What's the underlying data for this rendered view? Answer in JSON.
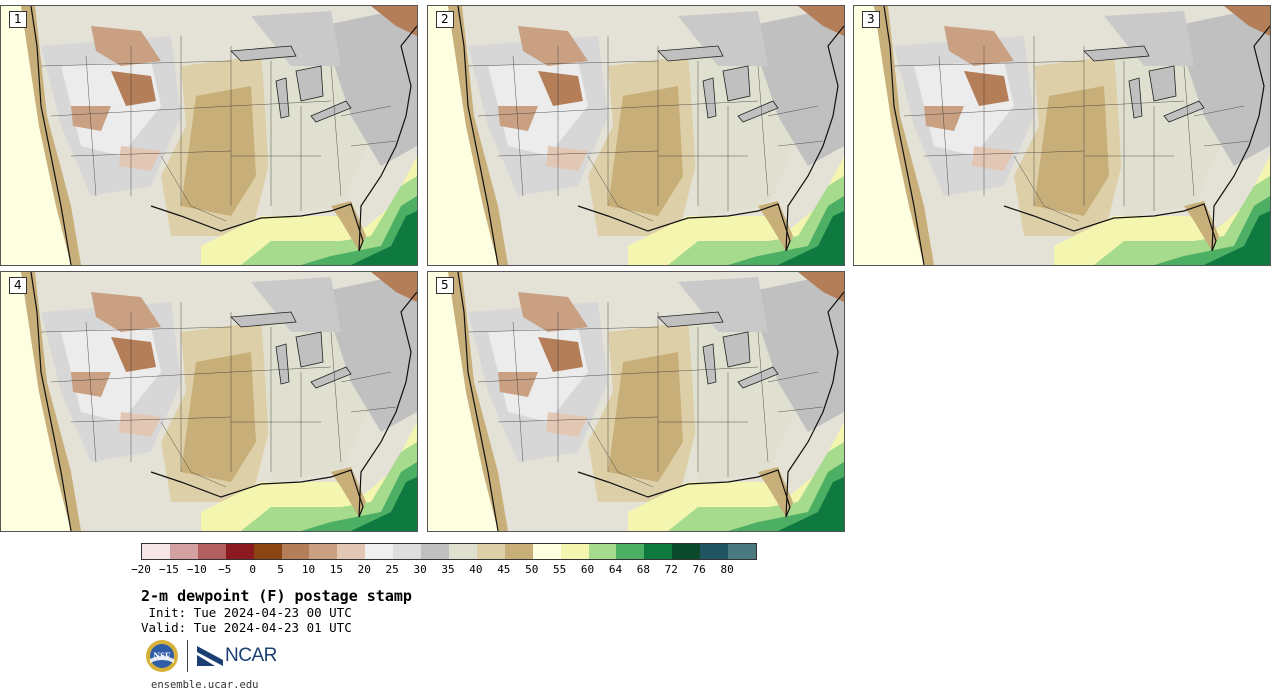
{
  "panels": [
    {
      "label": "1"
    },
    {
      "label": "2"
    },
    {
      "label": "3"
    },
    {
      "label": "4"
    },
    {
      "label": "5"
    }
  ],
  "colorbar": {
    "colors": [
      "#f6e6e8",
      "#d4a1a2",
      "#b35e60",
      "#8a1a20",
      "#8a4512",
      "#b47e58",
      "#c9a082",
      "#e2c7b5",
      "#f0f0f0",
      "#dedede",
      "#c0c0c0",
      "#e0e0d0",
      "#ddd0a8",
      "#c8ae78",
      "#fefee0",
      "#f4f6b0",
      "#a6da8c",
      "#4caf64",
      "#0f7a40",
      "#0b4a2c",
      "#1e5560",
      "#4a7a80"
    ],
    "ticks": [
      "−20",
      "−15",
      "−10",
      "−5",
      "0",
      "5",
      "10",
      "15",
      "20",
      "25",
      "30",
      "35",
      "40",
      "45",
      "50",
      "55",
      "60",
      "64",
      "68",
      "72",
      "76",
      "80"
    ]
  },
  "title": "2-m dewpoint (F) postage stamp",
  "init": " Init: Tue 2024-04-23 00 UTC",
  "valid": "Valid: Tue 2024-04-23 01 UTC",
  "logos": {
    "nsf": "NSF",
    "ncar": "NCAR"
  },
  "site": "ensemble.ucar.edu"
}
